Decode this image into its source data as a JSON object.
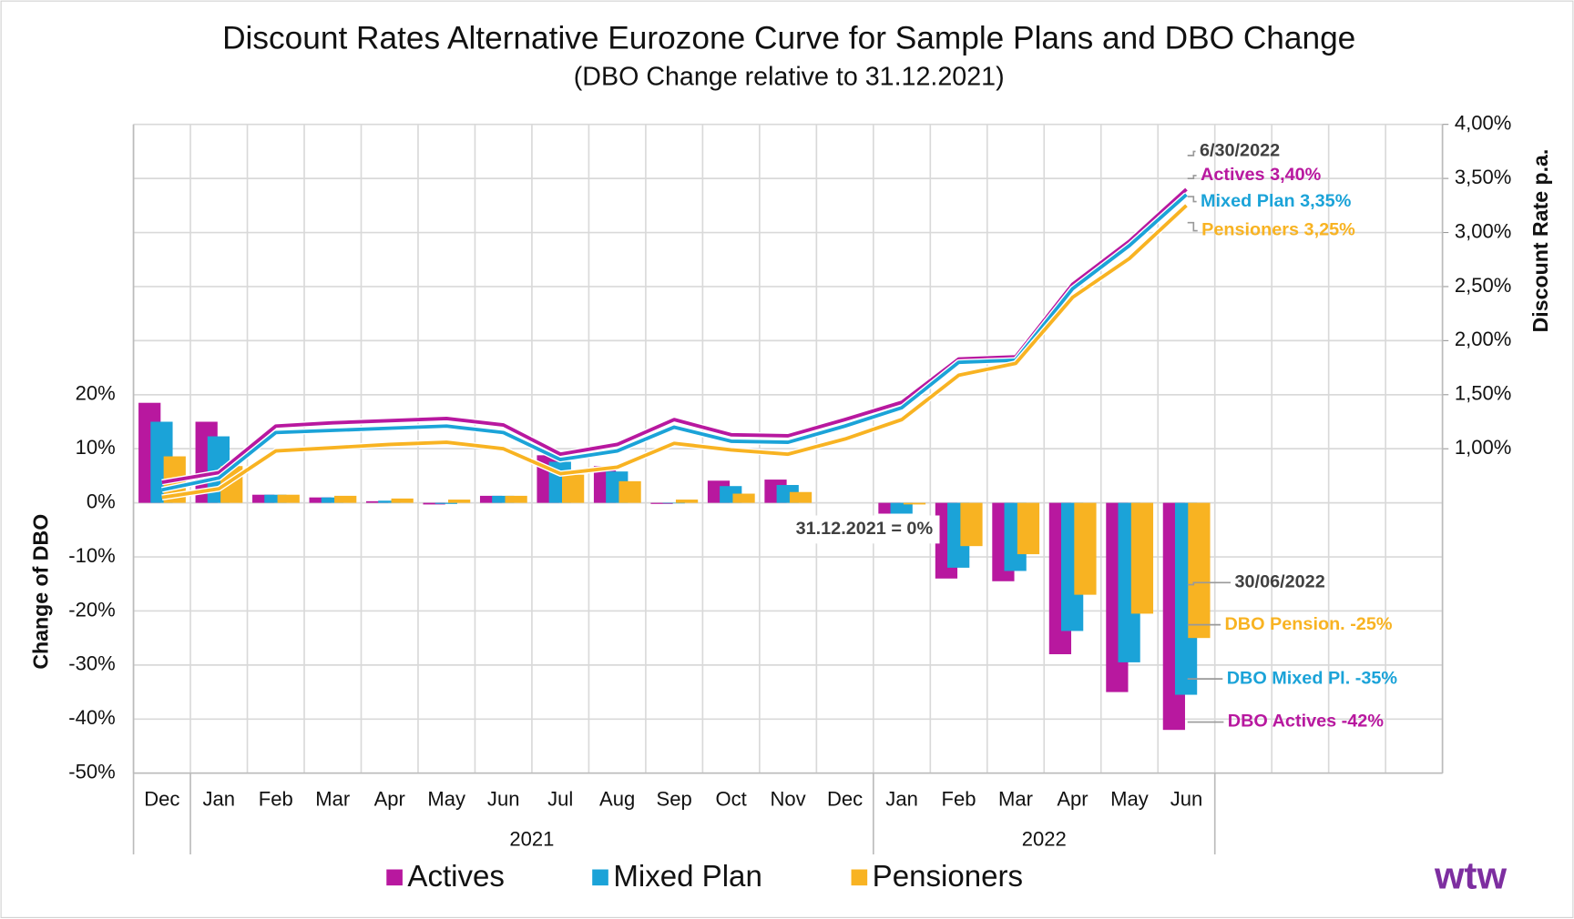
{
  "chart_data": {
    "type": "bar-line",
    "title": "Discount Rates Alternative Eurozone Curve for Sample Plans and DBO Change",
    "subtitle": "(DBO Change relative to 31.12.2021)",
    "y_label": "Change of DBO",
    "y2_label": "Discount Rate p.a.",
    "categories": [
      "Dec",
      "Jan",
      "Feb",
      "Mar",
      "Apr",
      "May",
      "Jun",
      "Jul",
      "Aug",
      "Sep",
      "Oct",
      "Nov",
      "Dec",
      "Jan",
      "Feb",
      "Mar",
      "Apr",
      "May",
      "Jun",
      null,
      null,
      null,
      null
    ],
    "groups": [
      {
        "label": "2021",
        "start": 1,
        "end": 12
      },
      {
        "label": "2022",
        "start": 13,
        "end": 18
      }
    ],
    "ylim": [
      -50,
      70
    ],
    "yticks": [
      {
        "value": -50,
        "label": "-50%"
      },
      {
        "value": -40,
        "label": "-40%"
      },
      {
        "value": -30,
        "label": "-30%"
      },
      {
        "value": -20,
        "label": "-20%"
      },
      {
        "value": -10,
        "label": "-10%"
      },
      {
        "value": 0,
        "label": "0%"
      },
      {
        "value": 10,
        "label": "10%"
      },
      {
        "value": 20,
        "label": "20%"
      }
    ],
    "y2lim": [
      -2,
      4
    ],
    "y2ticks": [
      {
        "value": 1,
        "label": "1,00%"
      },
      {
        "value": 1.5,
        "label": "1,50%"
      },
      {
        "value": 2,
        "label": "2,00%"
      },
      {
        "value": 2.5,
        "label": "2,50%"
      },
      {
        "value": 3,
        "label": "3,00%"
      },
      {
        "value": 3.5,
        "label": "3,50%"
      },
      {
        "value": 4,
        "label": "4,00%"
      }
    ],
    "grid": true,
    "bar_series": [
      {
        "name": "Actives",
        "color": "#b8189f",
        "values": [
          18.5,
          15,
          1.5,
          1,
          0.3,
          -0.3,
          1.3,
          8.8,
          6.8,
          -0.2,
          4.1,
          4.3,
          0,
          -2,
          -14,
          -14.5,
          -28,
          -35,
          -42,
          null,
          null,
          null,
          null
        ]
      },
      {
        "name": "Mixed Plan",
        "color": "#1ba3d8",
        "values": [
          15,
          12.3,
          1.5,
          1,
          0.4,
          -0.2,
          1.3,
          7.6,
          5.8,
          -0.1,
          3.1,
          3.3,
          0,
          -2,
          -12,
          -12.6,
          -23.7,
          -29.5,
          -35.5,
          null,
          null,
          null,
          null
        ]
      },
      {
        "name": "Pensioners",
        "color": "#f8b322",
        "values": [
          8.6,
          6.8,
          1.5,
          1.3,
          0.8,
          0.6,
          1.3,
          5.2,
          4,
          0.6,
          1.7,
          2,
          0,
          -0.3,
          -8,
          -9.5,
          -17,
          -20.5,
          -25,
          null,
          null,
          null,
          null
        ]
      }
    ],
    "line_series": [
      {
        "color": "#b8189f",
        "axis": "y2",
        "values": [
          0.69,
          0.78,
          1.21,
          1.24,
          1.26,
          1.28,
          1.22,
          0.95,
          1.04,
          1.27,
          1.13,
          1.12,
          1.27,
          1.43,
          1.83,
          1.85,
          2.52,
          2.92,
          3.4,
          null,
          null,
          null,
          null
        ]
      },
      {
        "color": "#1ba3d8",
        "axis": "y2",
        "values": [
          0.62,
          0.73,
          1.15,
          1.17,
          1.19,
          1.21,
          1.15,
          0.9,
          0.98,
          1.2,
          1.07,
          1.06,
          1.21,
          1.38,
          1.8,
          1.82,
          2.48,
          2.88,
          3.35,
          null,
          null,
          null,
          null
        ]
      },
      {
        "color": "#f8b322",
        "axis": "y2",
        "values": [
          0.55,
          0.63,
          0.98,
          1.01,
          1.04,
          1.06,
          1,
          0.77,
          0.83,
          1.05,
          0.99,
          0.95,
          1.09,
          1.27,
          1.68,
          1.79,
          2.4,
          2.76,
          3.25,
          null,
          null,
          null,
          null
        ]
      }
    ],
    "annotations": [
      {
        "text": "6/30/2022",
        "color": "#404040"
      },
      {
        "text": "Actives 3,40%",
        "color": "#b8189f"
      },
      {
        "text": "Mixed Plan 3,35%",
        "color": "#1ba3d8"
      },
      {
        "text": "Pensioners 3,25%",
        "color": "#f8b322"
      },
      {
        "text": "31.12.2021 = 0%",
        "color": "#404040"
      },
      {
        "text": "30/06/2022",
        "color": "#404040"
      },
      {
        "text": "DBO Pension. -25%",
        "color": "#f8b322"
      },
      {
        "text": "DBO Mixed Pl. -35%",
        "color": "#1ba3d8"
      },
      {
        "text": "DBO Actives -42%",
        "color": "#b8189f"
      }
    ],
    "logo": "wtw"
  }
}
